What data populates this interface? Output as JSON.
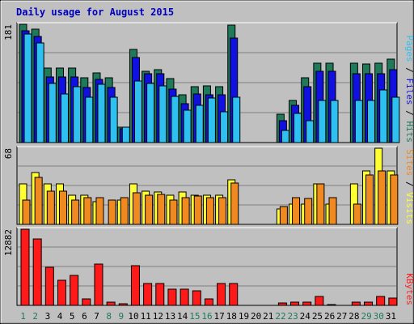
{
  "chart_data": {
    "type": "bar",
    "title": "Daily usage for August 2015",
    "categories": [
      "1",
      "2",
      "3",
      "4",
      "5",
      "6",
      "7",
      "8",
      "9",
      "10",
      "11",
      "12",
      "13",
      "14",
      "15",
      "16",
      "17",
      "18",
      "19",
      "20",
      "21",
      "22",
      "23",
      "24",
      "25",
      "26",
      "27",
      "28",
      "29",
      "30",
      "31"
    ],
    "weekend_days": [
      "1",
      "2",
      "8",
      "9",
      "15",
      "16",
      "22",
      "23",
      "29",
      "30"
    ],
    "panels": [
      {
        "name": "hits-files-pages",
        "ymax_label": "181",
        "ymax": 181,
        "ylabel_parts": [
          "Pages",
          "Files",
          "Hits"
        ],
        "series": [
          {
            "name": "Hits",
            "color": "#1f7a5a",
            "values": [
              181,
              174,
              114,
              114,
              114,
              99,
              107,
              99,
              23,
              143,
              109,
              111,
              98,
              73,
              85,
              87,
              85,
              180,
              0,
              0,
              0,
              43,
              64,
              99,
              121,
              121,
              0,
              121,
              120,
              121,
              128
            ]
          },
          {
            "name": "Files",
            "color": "#1010e0",
            "values": [
              171,
              162,
              101,
              101,
              101,
              84,
              97,
              84,
              21,
              130,
              105,
              105,
              82,
              60,
              75,
              73,
              73,
              160,
              0,
              0,
              0,
              33,
              57,
              85,
              109,
              109,
              0,
              105,
              105,
              105,
              111
            ]
          },
          {
            "name": "Pages",
            "color": "#2ec0f0",
            "values": [
              166,
              152,
              90,
              75,
              85,
              69,
              89,
              69,
              23,
              94,
              91,
              87,
              71,
              49,
              57,
              68,
              47,
              70,
              0,
              0,
              0,
              19,
              45,
              34,
              64,
              64,
              0,
              65,
              65,
              80,
              69
            ]
          }
        ]
      },
      {
        "name": "visits-sites",
        "ymax_label": "68",
        "ymax": 68,
        "ylabel_parts": [
          "Sites",
          "Visits"
        ],
        "series": [
          {
            "name": "Visits",
            "color": "#ffff33",
            "values": [
              36,
              46,
              36,
              36,
              26,
              26,
              20,
              0,
              22,
              36,
              30,
              29,
              26,
              29,
              26,
              26,
              26,
              40,
              0,
              0,
              0,
              14,
              18,
              18,
              36,
              18,
              0,
              36,
              48,
              68,
              48
            ]
          },
          {
            "name": "Sites",
            "color": "#f08a20",
            "values": [
              22,
              42,
              30,
              30,
              22,
              24,
              24,
              22,
              24,
              28,
              26,
              27,
              22,
              24,
              25,
              24,
              24,
              37,
              0,
              0,
              0,
              16,
              24,
              23,
              36,
              24,
              0,
              18,
              44,
              48,
              44
            ]
          }
        ]
      },
      {
        "name": "kbytes",
        "ymax_label": "12882",
        "ymax": 12882,
        "ylabel_parts": [
          "KBytes"
        ],
        "series": [
          {
            "name": "KBytes",
            "color": "#ff1a1a",
            "values": [
              12882,
              11200,
              6440,
              4190,
              5080,
              1160,
              6990,
              550,
              340,
              6670,
              3640,
              3700,
              2700,
              2700,
              2450,
              1040,
              3680,
              3680,
              0,
              0,
              0,
              360,
              550,
              560,
              1530,
              130,
              0,
              510,
              520,
              1490,
              1220
            ]
          }
        ]
      }
    ]
  }
}
